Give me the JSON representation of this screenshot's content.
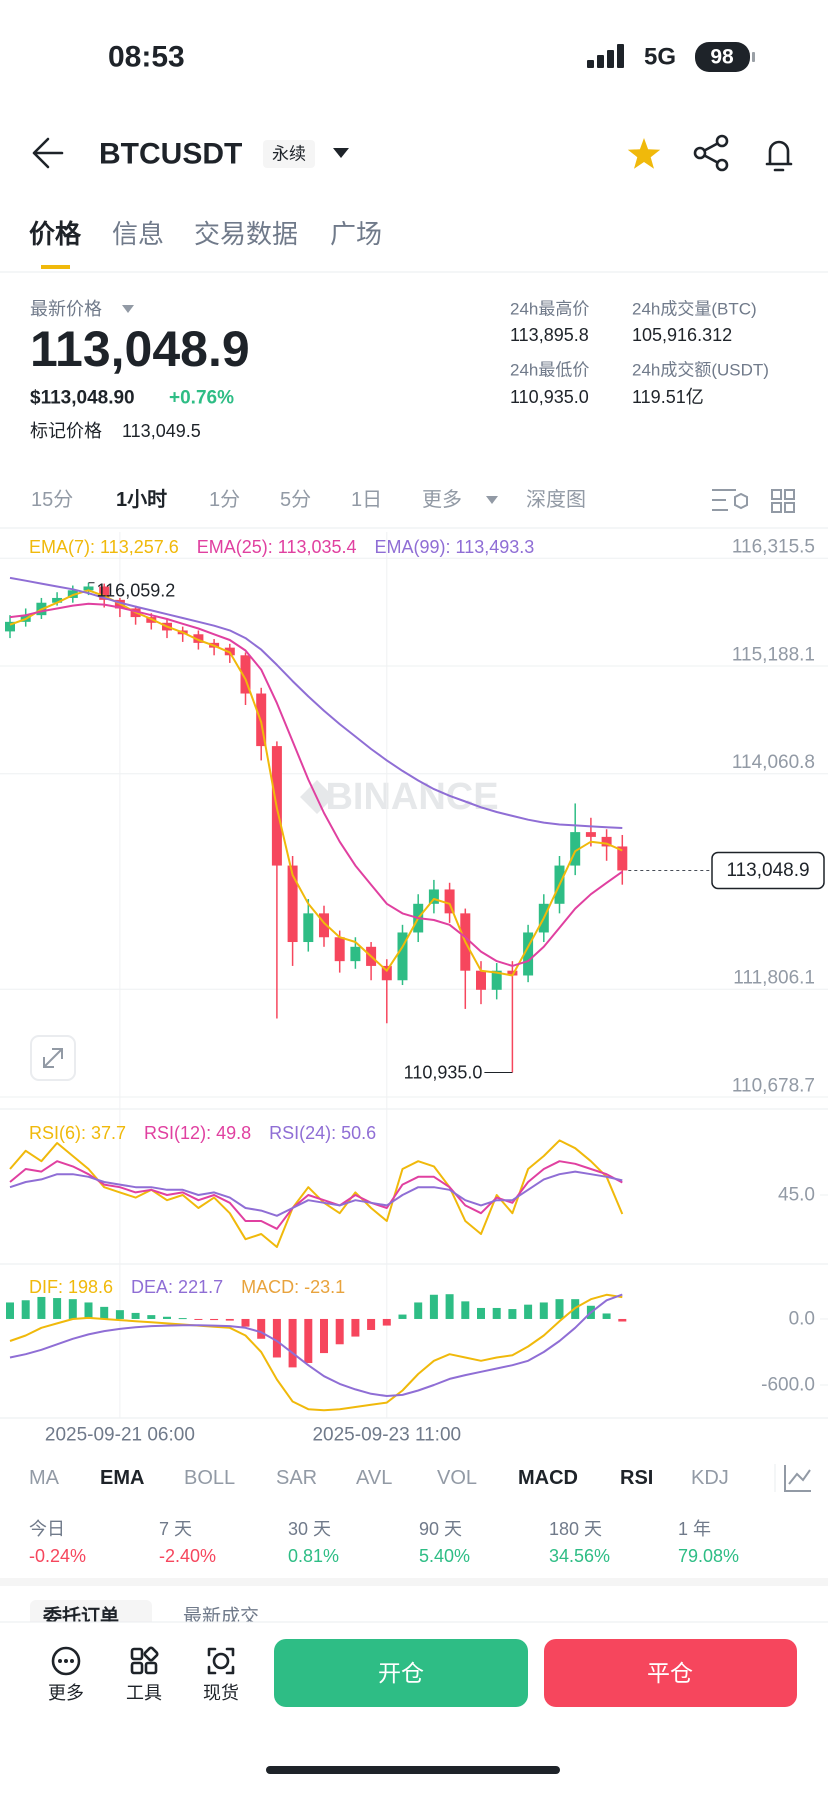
{
  "status_bar": {
    "time": "08:53",
    "network": "5G",
    "battery": "98"
  },
  "header": {
    "symbol": "BTCUSDT",
    "contract": "永续"
  },
  "tabs": [
    "价格",
    "信息",
    "交易数据",
    "广场"
  ],
  "ticker": {
    "last_price_label": "最新价格",
    "last_price": "113,048.9",
    "usd_price": "$113,048.90",
    "change": "+0.76%",
    "mark_price_label": "标记价格",
    "mark_price": "113,049.5",
    "stats": [
      {
        "label": "24h最高价",
        "value": "113,895.8"
      },
      {
        "label": "24h成交量(BTC)",
        "value": "105,916.312"
      },
      {
        "label": "24h最低价",
        "value": "110,935.0"
      },
      {
        "label": "24h成交额(USDT)",
        "value": "119.51亿"
      }
    ]
  },
  "intervals": [
    "15分",
    "1小时",
    "1分",
    "5分",
    "1日",
    "更多",
    "深度图"
  ],
  "chart_data": [
    {
      "type": "candlestick",
      "watermark": "BINANCE",
      "categories": [
        null,
        null,
        null,
        null,
        null,
        null,
        null,
        "2025-09-21 06:00",
        null,
        null,
        null,
        null,
        null,
        null,
        null,
        null,
        null,
        null,
        null,
        null,
        null,
        null,
        null,
        null,
        "2025-09-23 11:00",
        null,
        null,
        null,
        null,
        null,
        null,
        null,
        null,
        null,
        null,
        null,
        null,
        null,
        null,
        null
      ],
      "open": [
        115550,
        115650,
        115720,
        115850,
        115900,
        115980,
        116020,
        115880,
        115790,
        115700,
        115640,
        115560,
        115520,
        115430,
        115380,
        115300,
        114900,
        114350,
        113100,
        112300,
        112600,
        112350,
        112100,
        112250,
        112050,
        111900,
        112400,
        112700,
        112850,
        112600,
        112000,
        111800,
        112000,
        111950,
        112400,
        112700,
        113100,
        113450,
        113400,
        113300
      ],
      "high": [
        115720,
        115790,
        115900,
        115960,
        116030,
        116059.2,
        116050,
        115900,
        115820,
        115740,
        115680,
        115600,
        115560,
        115470,
        115420,
        115330,
        114960,
        114400,
        113200,
        112750,
        112680,
        112420,
        112350,
        112300,
        112120,
        112480,
        112800,
        112950,
        112920,
        112650,
        112100,
        112080,
        112100,
        112480,
        112800,
        113200,
        113750,
        113600,
        113480,
        113420
      ],
      "low": [
        115480,
        115600,
        115680,
        115820,
        115850,
        115930,
        115800,
        115700,
        115620,
        115570,
        115480,
        115440,
        115360,
        115300,
        115220,
        114780,
        114200,
        111500,
        112050,
        112200,
        112250,
        111980,
        112020,
        111900,
        111450,
        111850,
        112300,
        112600,
        112500,
        111600,
        111650,
        111700,
        110935.0,
        111880,
        112300,
        112600,
        113000,
        113300,
        113150,
        112900
      ],
      "close": [
        115650,
        115720,
        115850,
        115900,
        115980,
        116020,
        115880,
        115790,
        115700,
        115640,
        115560,
        115520,
        115430,
        115380,
        115300,
        114900,
        114350,
        113100,
        112300,
        112600,
        112350,
        112100,
        112250,
        112050,
        111900,
        112400,
        112700,
        112850,
        112600,
        112000,
        111800,
        112000,
        111950,
        112400,
        112700,
        113100,
        113450,
        113400,
        113300,
        113048.9
      ],
      "up_color": "#2ebd85",
      "down_color": "#f6465d",
      "series": [
        {
          "name": "EMA(7): 113,257.6",
          "color": "#f0b90b",
          "values": [
            115620,
            115680,
            115780,
            115850,
            115930,
            115980,
            115920,
            115840,
            115750,
            115680,
            115600,
            115540,
            115460,
            115400,
            115330,
            115050,
            114600,
            113700,
            113000,
            112700,
            112500,
            112350,
            112300,
            112150,
            112000,
            112250,
            112550,
            112750,
            112700,
            112300,
            112000,
            111980,
            111950,
            112250,
            112550,
            112900,
            113250,
            113350,
            113330,
            113257.6
          ]
        },
        {
          "name": "EMA(25): 113,035.4",
          "color": "#e040a0",
          "values": [
            115700,
            115720,
            115760,
            115790,
            115820,
            115840,
            115830,
            115800,
            115760,
            115720,
            115680,
            115630,
            115580,
            115520,
            115460,
            115350,
            115150,
            114800,
            114400,
            114000,
            113650,
            113350,
            113100,
            112900,
            112700,
            112600,
            112550,
            112530,
            112480,
            112350,
            112200,
            112100,
            112050,
            112100,
            112250,
            112450,
            112650,
            112800,
            112920,
            113035.4
          ]
        },
        {
          "name": "EMA(99): 113,493.3",
          "color": "#8f6ed5",
          "values": [
            116110,
            116080,
            116050,
            116020,
            115990,
            115950,
            115900,
            115850,
            115810,
            115770,
            115730,
            115690,
            115650,
            115610,
            115560,
            115480,
            115360,
            115200,
            115030,
            114870,
            114720,
            114580,
            114450,
            114320,
            114200,
            114090,
            113990,
            113900,
            113830,
            113770,
            113710,
            113660,
            113620,
            113580,
            113550,
            113530,
            113520,
            113510,
            113500,
            113493.3
          ]
        }
      ],
      "ylim": [
        110553,
        116590
      ],
      "yticks": [
        {
          "value": 116315.5,
          "label": "116,315.5"
        },
        {
          "value": 115188.1,
          "label": "115,188.1"
        },
        {
          "value": 114060.8,
          "label": "114,060.8"
        },
        {
          "value": 111806.1,
          "label": "111,806.1"
        },
        {
          "value": 110678.7,
          "label": "110,678.7"
        }
      ],
      "grid": true,
      "annotations": [
        {
          "value": 116059.2,
          "label": "116,059.2"
        },
        {
          "value": 110935.0,
          "label": "110,935.0"
        }
      ],
      "last_price": {
        "value": 113048.9,
        "label": "113,048.9"
      }
    },
    {
      "type": "line",
      "series": [
        {
          "name": "RSI(6): 37.7",
          "color": "#f0b90b",
          "values": [
            55,
            62,
            58,
            65,
            60,
            55,
            48,
            46,
            44,
            47,
            43,
            45,
            40,
            44,
            38,
            28,
            30,
            25,
            40,
            48,
            42,
            38,
            46,
            40,
            35,
            55,
            58,
            56,
            48,
            35,
            30,
            45,
            38,
            55,
            60,
            66,
            63,
            58,
            52,
            37.7
          ]
        },
        {
          "name": "RSI(12): 49.8",
          "color": "#e040a0",
          "values": [
            50,
            55,
            54,
            58,
            56,
            53,
            49,
            48,
            46,
            47,
            45,
            46,
            43,
            45,
            42,
            35,
            35,
            32,
            40,
            45,
            43,
            41,
            45,
            42,
            40,
            49,
            52,
            52,
            48,
            41,
            38,
            44,
            42,
            50,
            55,
            58,
            57,
            55,
            53,
            49.8
          ]
        },
        {
          "name": "RSI(24): 50.6",
          "color": "#8f6ed5",
          "values": [
            48,
            50,
            51,
            53,
            53,
            52,
            50,
            49,
            48,
            48,
            47,
            47,
            45,
            46,
            44,
            40,
            39,
            37,
            40,
            43,
            42,
            41,
            43,
            42,
            41,
            45,
            48,
            48,
            47,
            43,
            41,
            43,
            43,
            47,
            51,
            53,
            54,
            53,
            52,
            50.6
          ]
        }
      ],
      "ylim": [
        20,
        70
      ],
      "yticks": [
        {
          "value": 45,
          "label": "45.0"
        }
      ],
      "grid": false
    },
    {
      "type": "macd",
      "series": [
        {
          "name": "DIF: 198.6",
          "color": "#f0b90b",
          "values": [
            -200,
            -150,
            -80,
            -40,
            0,
            10,
            0,
            -10,
            -20,
            -30,
            -40,
            -50,
            -60,
            -70,
            -80,
            -150,
            -300,
            -550,
            -750,
            -820,
            -830,
            -820,
            -800,
            -780,
            -760,
            -650,
            -500,
            -380,
            -320,
            -350,
            -380,
            -350,
            -330,
            -250,
            -150,
            -20,
            100,
            180,
            220,
            198.6
          ]
        },
        {
          "name": "DEA: 221.7",
          "color": "#8f6ed5",
          "values": [
            -350,
            -320,
            -280,
            -230,
            -180,
            -140,
            -110,
            -90,
            -75,
            -65,
            -60,
            -58,
            -58,
            -60,
            -65,
            -80,
            -120,
            -200,
            -310,
            -420,
            -520,
            -590,
            -640,
            -680,
            -700,
            -690,
            -650,
            -600,
            -545,
            -510,
            -480,
            -450,
            -420,
            -380,
            -300,
            -200,
            -80,
            60,
            170,
            221.7
          ]
        },
        {
          "name": "MACD: -23.1",
          "color": "#e8a33d",
          "type": "bar",
          "up_color": "#2ebd85",
          "down_color": "#f6465d",
          "values": [
            150,
            170,
            200,
            190,
            180,
            150,
            110,
            80,
            55,
            35,
            20,
            8,
            -2,
            -10,
            -15,
            -70,
            -180,
            -350,
            -440,
            -400,
            -310,
            -230,
            -160,
            -100,
            -60,
            40,
            150,
            220,
            225,
            160,
            100,
            100,
            90,
            130,
            150,
            180,
            180,
            120,
            50,
            -23.1
          ]
        }
      ],
      "ylim": [
        -900,
        445
      ],
      "yticks": [
        {
          "value": 0,
          "label": "0.0"
        },
        {
          "value": -600,
          "label": "-600.0"
        }
      ],
      "grid": false
    }
  ],
  "indicators": [
    "MA",
    "EMA",
    "BOLL",
    "SAR",
    "AVL",
    "VOL",
    "MACD",
    "RSI",
    "KDJ"
  ],
  "performance": [
    {
      "label": "今日",
      "value": "-0.24%"
    },
    {
      "label": "7 天",
      "value": "-2.40%"
    },
    {
      "label": "30 天",
      "value": "0.81%"
    },
    {
      "label": "90 天",
      "value": "5.40%"
    },
    {
      "label": "180 天",
      "value": "34.56%"
    },
    {
      "label": "1 年",
      "value": "79.08%"
    }
  ],
  "order_tabs": [
    "委托订单",
    "最新成交"
  ],
  "bottom_bar": {
    "items": [
      "更多",
      "工具",
      "现货"
    ],
    "open": "开仓",
    "close": "平仓"
  }
}
